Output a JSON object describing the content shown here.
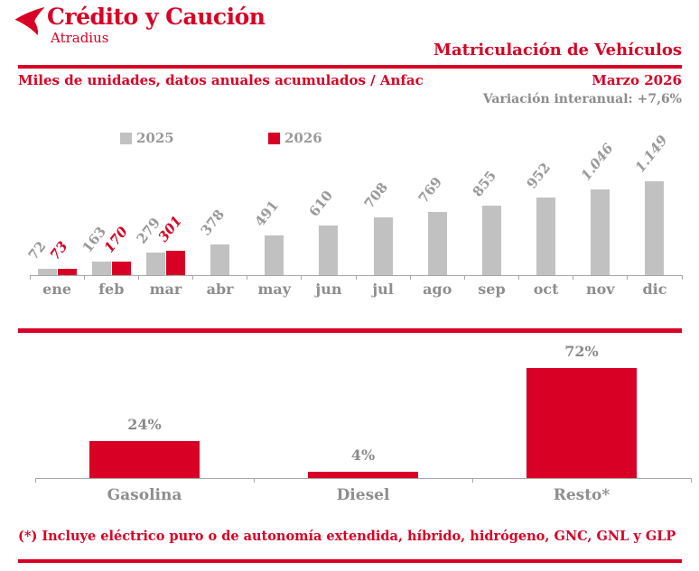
{
  "brand": {
    "name": "Crédito y Caución",
    "sub": "Atradius"
  },
  "header": {
    "title": "Matriculación de Vehículos",
    "subtitle": "Miles de unidades, datos anuales acumulados / Anfac",
    "period": "Marzo 2026",
    "variation": "Variación interanual: +7,6%"
  },
  "colors": {
    "red": "#d80024",
    "bar_gray": "#c1c1c1",
    "text_gray": "#8e8e8e",
    "value_gray": "#9a9a9a",
    "axis_gray": "#a8a8a8"
  },
  "chart_data": [
    {
      "type": "bar",
      "title": "Matriculación de Vehículos",
      "ylabel": "Miles de unidades, datos anuales acumulados",
      "categories": [
        "ene",
        "feb",
        "mar",
        "abr",
        "may",
        "jun",
        "jul",
        "ago",
        "sep",
        "oct",
        "nov",
        "dic"
      ],
      "series": [
        {
          "name": "2025",
          "color": "#c1c1c1",
          "values": [
            72,
            163,
            279,
            378,
            491,
            610,
            708,
            769,
            855,
            952,
            1046,
            1149
          ],
          "labels": [
            "72",
            "163",
            "279",
            "378",
            "491",
            "610",
            "708",
            "769",
            "855",
            "952",
            "1.046",
            "1.149"
          ],
          "italic": [
            false,
            false,
            false,
            false,
            false,
            false,
            false,
            false,
            false,
            false,
            true,
            true
          ]
        },
        {
          "name": "2026",
          "color": "#d80024",
          "values": [
            73,
            170,
            301,
            null,
            null,
            null,
            null,
            null,
            null,
            null,
            null,
            null
          ],
          "labels": [
            "73",
            "170",
            "301"
          ]
        }
      ],
      "ylim": [
        0,
        1200
      ],
      "legend_position": "top",
      "grid": false
    },
    {
      "type": "bar",
      "categories": [
        "Gasolina",
        "Diesel",
        "Resto*"
      ],
      "values": [
        24,
        4,
        72
      ],
      "labels": [
        "24%",
        "4%",
        "72%"
      ],
      "color": "#d80024",
      "ylim": [
        0,
        80
      ],
      "grid": false
    }
  ],
  "footnote": "(*) Incluye eléctrico puro o de autonomía extendida, híbrido, hidrógeno, GNC, GNL y GLP"
}
